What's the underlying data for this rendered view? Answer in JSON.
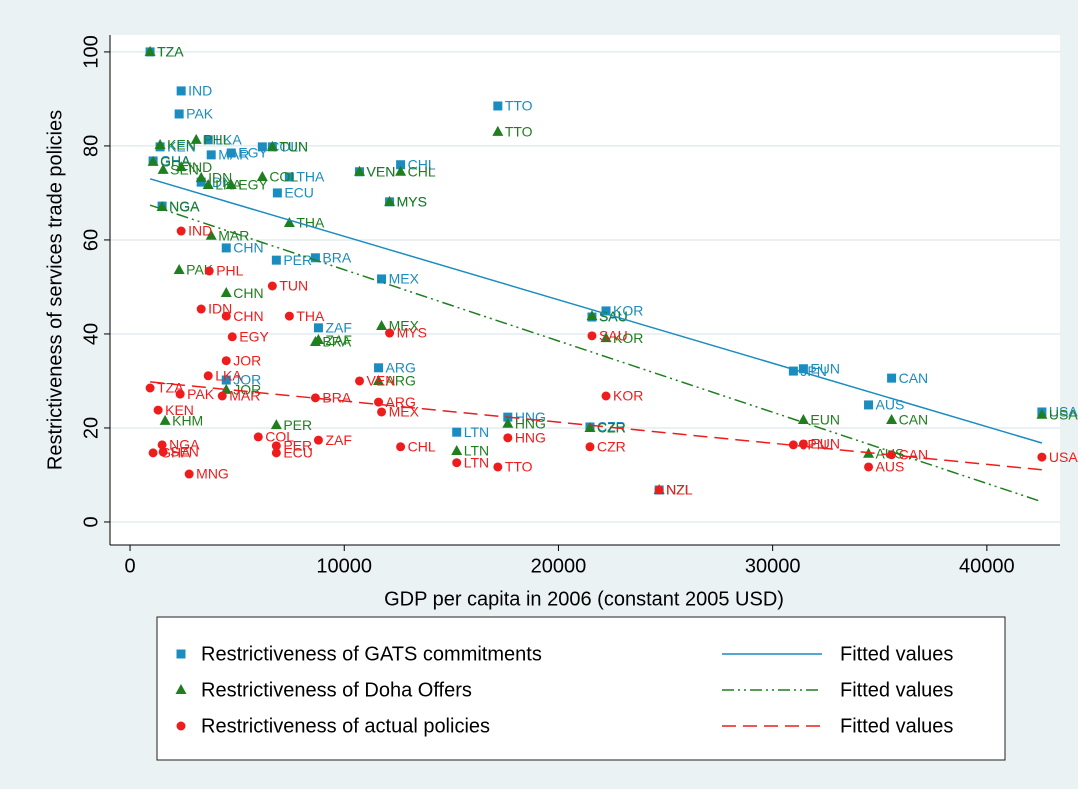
{
  "chart_data": {
    "type": "scatter",
    "xlabel": "GDP per capita in 2006 (constant 2005 USD)",
    "ylabel": "Restrictiveness of services trade policies",
    "xlim": [
      -936,
      43415
    ],
    "ylim": [
      -4.9,
      103.6
    ],
    "xticks": [
      0,
      10000,
      20000,
      30000,
      40000
    ],
    "yticks": [
      0,
      20,
      40,
      60,
      80,
      100
    ],
    "grid": true,
    "series": [
      {
        "name": "Restrictiveness of GATS commitments",
        "type": "scatter",
        "marker": "square",
        "color": "#1a8cc0",
        "labels": [
          "TZA",
          "IND",
          "PAK",
          "TTO",
          "KEN",
          "LKA",
          "MAR",
          "EGY",
          "COL",
          "TUN",
          "CHL",
          "VEN",
          "THA",
          "ECU",
          "MYS",
          "GHA",
          "IDN",
          "NGA",
          "CHN",
          "PER",
          "BRA",
          "MEX",
          "ZAF",
          "KOR",
          "SAU",
          "ARG",
          "JOR",
          "HNG",
          "LTN",
          "CZR",
          "JPN",
          "EUN",
          "CAN",
          "AUS",
          "USA",
          "NZL"
        ],
        "x": [
          936,
          2386,
          2292,
          17170,
          1403,
          3649,
          3789,
          4725,
          6175,
          6643,
          12631,
          10713,
          7438,
          6877,
          12116,
          1076,
          3321,
          1497,
          4491,
          6830,
          8654,
          11742,
          8795,
          22220,
          21565,
          11601,
          4491,
          17636,
          15250,
          21472,
          30968,
          31436,
          35553,
          34477,
          42570,
          24700
        ],
        "values": [
          100,
          91.7,
          86.8,
          88.5,
          79.8,
          81.3,
          78.1,
          78.5,
          79.8,
          79.8,
          76.0,
          74.5,
          73.4,
          70.0,
          68.1,
          76.8,
          72.3,
          67.2,
          58.3,
          55.7,
          56.2,
          51.7,
          41.3,
          44.9,
          43.6,
          32.8,
          30.2,
          22.3,
          19.1,
          20.2,
          32.1,
          32.6,
          30.6,
          24.9,
          23.4,
          6.8
        ]
      },
      {
        "name": "Restrictiveness of Doha Offers",
        "type": "scatter",
        "marker": "triangle",
        "color": "#1f7f1f",
        "labels": [
          "TZA",
          "TTO",
          "PHL",
          "KEN",
          "TUN",
          "GHA",
          "SEN",
          "IND",
          "VEN",
          "CHL",
          "COL",
          "IDN",
          "LKA",
          "EGY",
          "MYS",
          "NGA",
          "THA",
          "MAR",
          "PAK",
          "CHN",
          "MEX",
          "ZAF",
          "BRA",
          "SAU",
          "KOR",
          "ARG",
          "JOR",
          "KHM",
          "PER",
          "HNG",
          "CZR",
          "LTN",
          "EUN",
          "CAN",
          "USA",
          "AUS",
          "NZL"
        ],
        "x": [
          936,
          17170,
          3088,
          1403,
          6643,
          1076,
          1544,
          2386,
          10713,
          12631,
          6175,
          3321,
          3649,
          4725,
          12116,
          1497,
          7438,
          3789,
          2292,
          4491,
          11742,
          8795,
          8654,
          21565,
          22220,
          11601,
          4491,
          1637,
          6830,
          17636,
          21472,
          15250,
          31436,
          35553,
          42570,
          34477,
          24700
        ],
        "values": [
          100,
          83.0,
          81.3,
          80.2,
          79.8,
          76.6,
          74.9,
          75.5,
          74.5,
          74.5,
          73.4,
          73.2,
          71.7,
          71.7,
          68.1,
          67.0,
          63.6,
          60.9,
          53.6,
          48.7,
          41.7,
          38.7,
          38.3,
          43.8,
          39.1,
          30.0,
          28.1,
          21.5,
          20.6,
          20.9,
          20.0,
          15.1,
          21.7,
          21.7,
          22.8,
          14.5,
          6.8
        ]
      },
      {
        "name": "Restrictiveness of actual policies",
        "type": "scatter",
        "marker": "circle",
        "color": "#ee1c1c",
        "labels": [
          "IND",
          "PHL",
          "TUN",
          "IDN",
          "CHN",
          "THA",
          "EGY",
          "MYS",
          "SAU",
          "JOR",
          "VEN",
          "LKA",
          "TZA",
          "PAK",
          "MAR",
          "KEN",
          "KOR",
          "BRA",
          "ARG",
          "MEX",
          "HNG",
          "ZAF",
          "COL",
          "PER",
          "ECU",
          "CHL",
          "CZR",
          "NGA",
          "SEN",
          "GHA",
          "LTN",
          "TTO",
          "MNG",
          "JPN",
          "EUN",
          "CAN",
          "AUS",
          "USA",
          "NZL"
        ],
        "x": [
          2386,
          3696,
          6643,
          3321,
          4491,
          7438,
          4772,
          12116,
          21565,
          4491,
          10713,
          3649,
          936,
          2339,
          4304,
          1310,
          22220,
          8654,
          11601,
          11742,
          17636,
          8795,
          5988,
          6830,
          6830,
          12631,
          21472,
          1497,
          1544,
          1076,
          15250,
          17170,
          2760,
          30968,
          31436,
          35553,
          34477,
          42570,
          24700
        ],
        "values": [
          61.9,
          53.4,
          50.2,
          45.3,
          43.8,
          43.8,
          39.4,
          40.2,
          39.6,
          34.3,
          30.0,
          31.1,
          28.5,
          27.2,
          26.8,
          23.8,
          26.8,
          26.4,
          25.5,
          23.4,
          17.9,
          17.4,
          18.1,
          16.2,
          14.7,
          16.0,
          16.0,
          16.4,
          14.9,
          14.7,
          12.6,
          11.7,
          10.2,
          16.4,
          16.6,
          14.3,
          11.7,
          13.8,
          6.8
        ]
      },
      {
        "name": "Fitted values",
        "type": "line",
        "dash": "solid",
        "color": "#1a8cc0",
        "x": [
          936,
          42570
        ],
        "values": [
          73.0,
          16.8
        ]
      },
      {
        "name": "Fitted values",
        "type": "line",
        "dash": "dashdotdot",
        "color": "#1f7f1f",
        "x": [
          936,
          42570
        ],
        "values": [
          67.4,
          4.3
        ]
      },
      {
        "name": "Fitted values",
        "type": "line",
        "dash": "dash",
        "color": "#ee1c1c",
        "x": [
          936,
          42570
        ],
        "values": [
          29.8,
          11.1
        ]
      }
    ]
  }
}
